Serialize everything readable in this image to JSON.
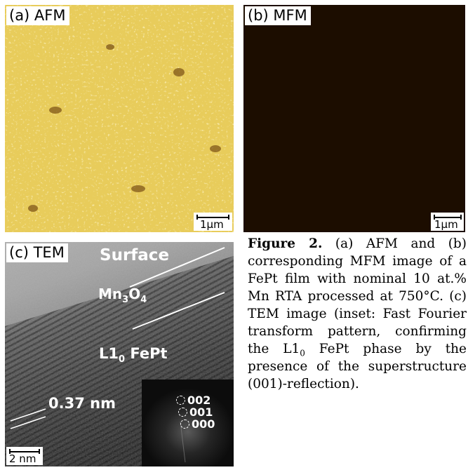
{
  "panels": {
    "afm": {
      "label": "(a) AFM",
      "scale": "1µm"
    },
    "mfm": {
      "label": "(b) MFM",
      "scale": "1µm"
    },
    "tem": {
      "label": "(c) TEM",
      "scale": "2 nm",
      "surface": "Surface",
      "oxide_base": "Mn",
      "oxide_sub1": "3",
      "oxide_mid": "O",
      "oxide_sub2": "4",
      "phase_base": "L1",
      "phase_sub": "0",
      "phase_rest": " FePt",
      "spacing": "0.37 nm",
      "fft_spots": [
        "002",
        "001",
        "000"
      ]
    }
  },
  "caption": {
    "label": "Figure 2.",
    "text_part1": " (a) AFM and (b) corresponding MFM image of a FePt film with nominal 10 at.% Mn RTA processed at 750°C. (c) TEM image (inset: Fast Fourier transform pattern, confirming the L1",
    "sub": "0",
    "text_part2": " FePt phase by the presence of the superstructure (001)-reflection)."
  },
  "colors": {
    "afm_dark": "#4a2400",
    "afm_light": "#f5dc64",
    "mfm_dark": "#1c0e00",
    "mfm_light": "#f8df5c"
  }
}
